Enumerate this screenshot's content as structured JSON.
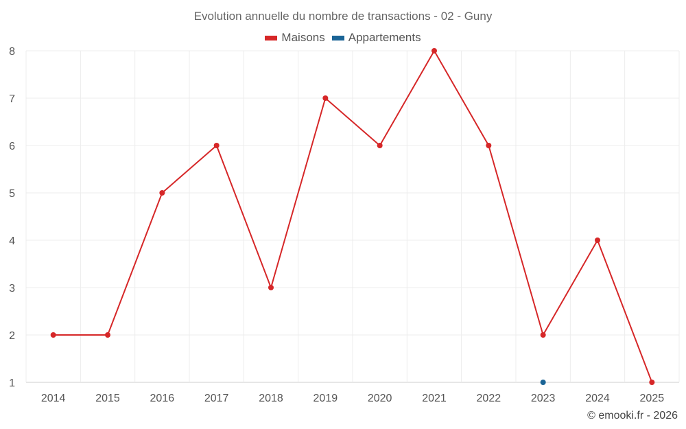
{
  "chart_data": {
    "type": "line",
    "title": "Evolution annuelle du nombre de transactions - 02 - Guny",
    "categories": [
      "2014",
      "2015",
      "2016",
      "2017",
      "2018",
      "2019",
      "2020",
      "2021",
      "2022",
      "2023",
      "2024",
      "2025"
    ],
    "series": [
      {
        "name": "Maisons",
        "color": "#d62728",
        "values": [
          2,
          2,
          5,
          6,
          3,
          7,
          6,
          8,
          6,
          2,
          4,
          1
        ]
      },
      {
        "name": "Appartements",
        "color": "#1a6496",
        "values": [
          null,
          null,
          null,
          null,
          null,
          null,
          null,
          null,
          null,
          1,
          null,
          null
        ]
      }
    ],
    "ylim": [
      1,
      8
    ],
    "yticks": [
      1,
      2,
      3,
      4,
      5,
      6,
      7,
      8
    ],
    "xlabel": "",
    "ylabel": "",
    "grid": true,
    "legend": "top-center"
  },
  "credit": "© emooki.fr - 2026"
}
